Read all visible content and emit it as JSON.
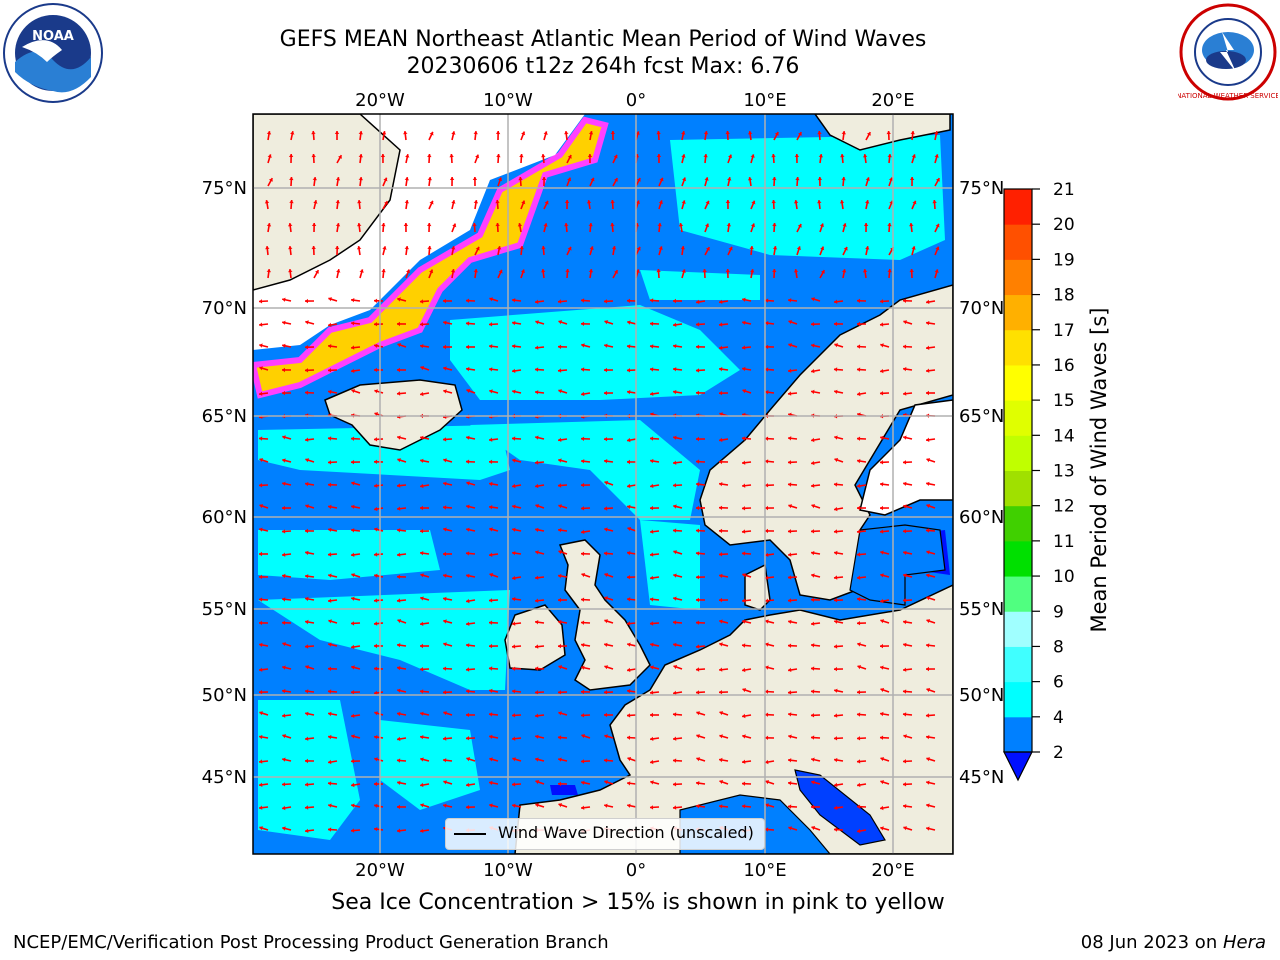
{
  "header": {
    "title_line1": "GEFS MEAN Northeast Atlantic Mean Period of Wind Waves",
    "title_line2": "20230606 t12z 264h fcst   Max: 6.76"
  },
  "map": {
    "lon_labels": [
      "20°W",
      "10°W",
      "0°",
      "10°E",
      "20°E"
    ],
    "lat_labels": [
      "75°N",
      "70°N",
      "65°N",
      "60°N",
      "55°N",
      "50°N",
      "45°N"
    ],
    "legend_label": "Wind Wave Direction (unscaled)",
    "colors": {
      "land": "#efedde",
      "ice": "#ffffff",
      "ocean_low": "#0080ff",
      "ocean_mid": "#00ffff",
      "arrows": "#ff0000",
      "grid": "#b0b0b0"
    }
  },
  "colorbar": {
    "title": "Mean Period of Wind Waves [s]",
    "tick_labels": [
      "2",
      "4",
      "6",
      "8",
      "9",
      "10",
      "11",
      "12",
      "13",
      "14",
      "15",
      "16",
      "17",
      "18",
      "19",
      "20",
      "21"
    ],
    "colors": [
      "#0080ff",
      "#00ffff",
      "#40ffff",
      "#a0ffff",
      "#50ff80",
      "#00e000",
      "#40d000",
      "#a0e000",
      "#c0ff00",
      "#e0ff00",
      "#ffff00",
      "#ffe000",
      "#ffb000",
      "#ff8000",
      "#ff5000",
      "#ff2000",
      "#ff0000"
    ]
  },
  "logos": {
    "noaa_text": "NOAA",
    "nws_text": "NATIONAL WEATHER SERVICE"
  },
  "footer": {
    "note": "Sea Ice Concentration > 15% is shown in pink to yellow",
    "left": "NCEP/EMC/Verification Post Processing Product Generation Branch",
    "right_date": "08 Jun 2023 on ",
    "right_host": "Hera"
  }
}
